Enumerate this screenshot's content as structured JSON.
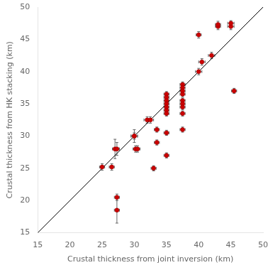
{
  "chart_data": {
    "type": "scatter",
    "xlabel": "Crustal thickness from joint inversion (km)",
    "ylabel": "Crustal thickness from HK stacking (km)",
    "xlim": [
      15,
      50
    ],
    "ylim": [
      15,
      50
    ],
    "xticks": [
      15,
      20,
      25,
      30,
      35,
      40,
      45,
      50
    ],
    "yticks": [
      15,
      20,
      25,
      30,
      35,
      40,
      45,
      50
    ],
    "grid": false,
    "series": [
      {
        "type": "scatter",
        "color": "#CC0000",
        "marker": "circle",
        "x": [
          25.0,
          26.5,
          27.0,
          27.3,
          27.3,
          27.3,
          30.0,
          30.0,
          30.2,
          30.5,
          32.0,
          32.5,
          33.0,
          33.5,
          33.5,
          35.0,
          35.0,
          35.0,
          35.0,
          35.0,
          35.0,
          35.0,
          35.0,
          35.0,
          37.5,
          37.5,
          37.5,
          37.5,
          37.5,
          37.5,
          37.5,
          37.5,
          37.5,
          40.0,
          40.0,
          40.5,
          42.0,
          43.0,
          43.0,
          45.0,
          45.0,
          45.5
        ],
        "values": [
          25.2,
          25.2,
          28.0,
          28.0,
          20.5,
          18.5,
          30.0,
          30.0,
          28.0,
          28.0,
          32.5,
          32.5,
          25.0,
          31.0,
          29.0,
          36.5,
          36.0,
          35.5,
          35.0,
          34.5,
          34.0,
          33.5,
          30.5,
          27.0,
          38.0,
          37.5,
          37.0,
          36.5,
          35.5,
          35.0,
          34.5,
          33.5,
          31.0,
          40.0,
          45.7,
          41.5,
          42.5,
          47.0,
          47.3,
          47.0,
          47.5,
          37.0
        ],
        "xerr": [
          0.4,
          0.4,
          0.4,
          0.4,
          0.4,
          0.4,
          0.5,
          0.5,
          0.4,
          0.4,
          0.5,
          0.5,
          0.4,
          0.4,
          0.4,
          0.4,
          0.4,
          0.4,
          0.4,
          0.4,
          0.4,
          0.4,
          0.4,
          0.4,
          0.4,
          0.4,
          0.4,
          0.4,
          0.4,
          0.4,
          0.4,
          0.4,
          0.4,
          0.5,
          0.4,
          0.5,
          0.5,
          0.4,
          0.4,
          0.5,
          0.5,
          0.4
        ],
        "yerr": [
          0.5,
          0.5,
          1.5,
          1.0,
          0.5,
          2.0,
          1.0,
          0.5,
          0.5,
          0.5,
          0.5,
          0.5,
          0.4,
          0.4,
          0.4,
          0.4,
          0.4,
          0.4,
          0.4,
          0.4,
          0.4,
          0.4,
          0.4,
          0.4,
          0.4,
          0.4,
          0.4,
          0.4,
          0.4,
          0.4,
          0.4,
          0.4,
          0.4,
          0.5,
          0.5,
          0.5,
          0.5,
          0.5,
          0.5,
          0.5,
          0.4,
          0.4
        ]
      },
      {
        "type": "line",
        "color": "#000000",
        "line_style": "solid",
        "x": [
          15,
          50
        ],
        "values": [
          15,
          50
        ]
      }
    ]
  }
}
